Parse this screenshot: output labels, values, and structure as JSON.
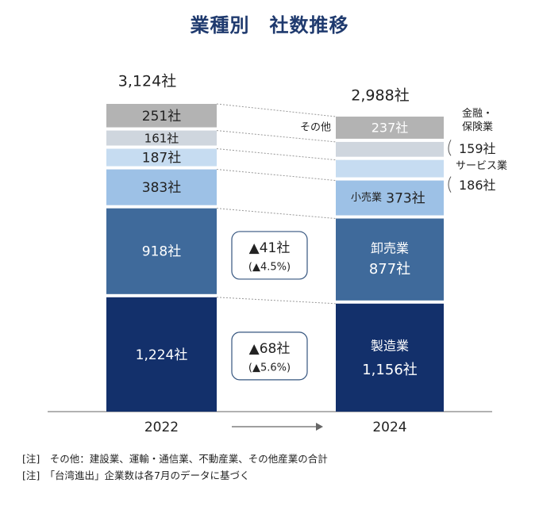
{
  "title": "業種別　社数推移",
  "chart_data": {
    "type": "stacked-bar",
    "categories": [
      "2022",
      "2024"
    ],
    "series": [
      {
        "name": "製造業",
        "values": [
          1224,
          1156
        ],
        "labels": [
          "1,224社",
          "1,156社"
        ],
        "color": "#13306b"
      },
      {
        "name": "卸売業",
        "values": [
          918,
          877
        ],
        "labels": [
          "918社",
          "877社"
        ],
        "color": "#3f6a9b"
      },
      {
        "name": "小売業",
        "values": [
          383,
          373
        ],
        "labels": [
          "383社",
          "373社"
        ],
        "color": "#9dc1e6"
      },
      {
        "name": "サービス業",
        "values": [
          187,
          186
        ],
        "labels": [
          "187社",
          "186社"
        ],
        "color": "#c6dcf1"
      },
      {
        "name": "金融・保険業",
        "values": [
          161,
          159
        ],
        "labels": [
          "161社",
          "159社"
        ],
        "color": "#cfd6de"
      },
      {
        "name": "その他",
        "values": [
          251,
          237
        ],
        "labels": [
          "251社",
          "237社"
        ],
        "color": "#b3b3b3"
      }
    ],
    "totals": [
      3124,
      2988
    ],
    "total_labels": [
      "3,124社",
      "2,988社"
    ],
    "series_tags": {
      "mfg": "製造業",
      "wholesale": "卸売業",
      "retail": "小売業",
      "service": "サービス業",
      "finance": "金融・保険業",
      "other": "その他"
    },
    "changes": [
      {
        "text": "▲41社",
        "pct": "(▲4.5%)"
      },
      {
        "text": "▲68社",
        "pct": "(▲5.6%)"
      }
    ]
  },
  "notes": [
    "[注]　その他：建設業、運輸・通信業、不動産業、その他産業の合計",
    "[注]　「台湾進出」企業数は各7月のデータに基づく"
  ]
}
